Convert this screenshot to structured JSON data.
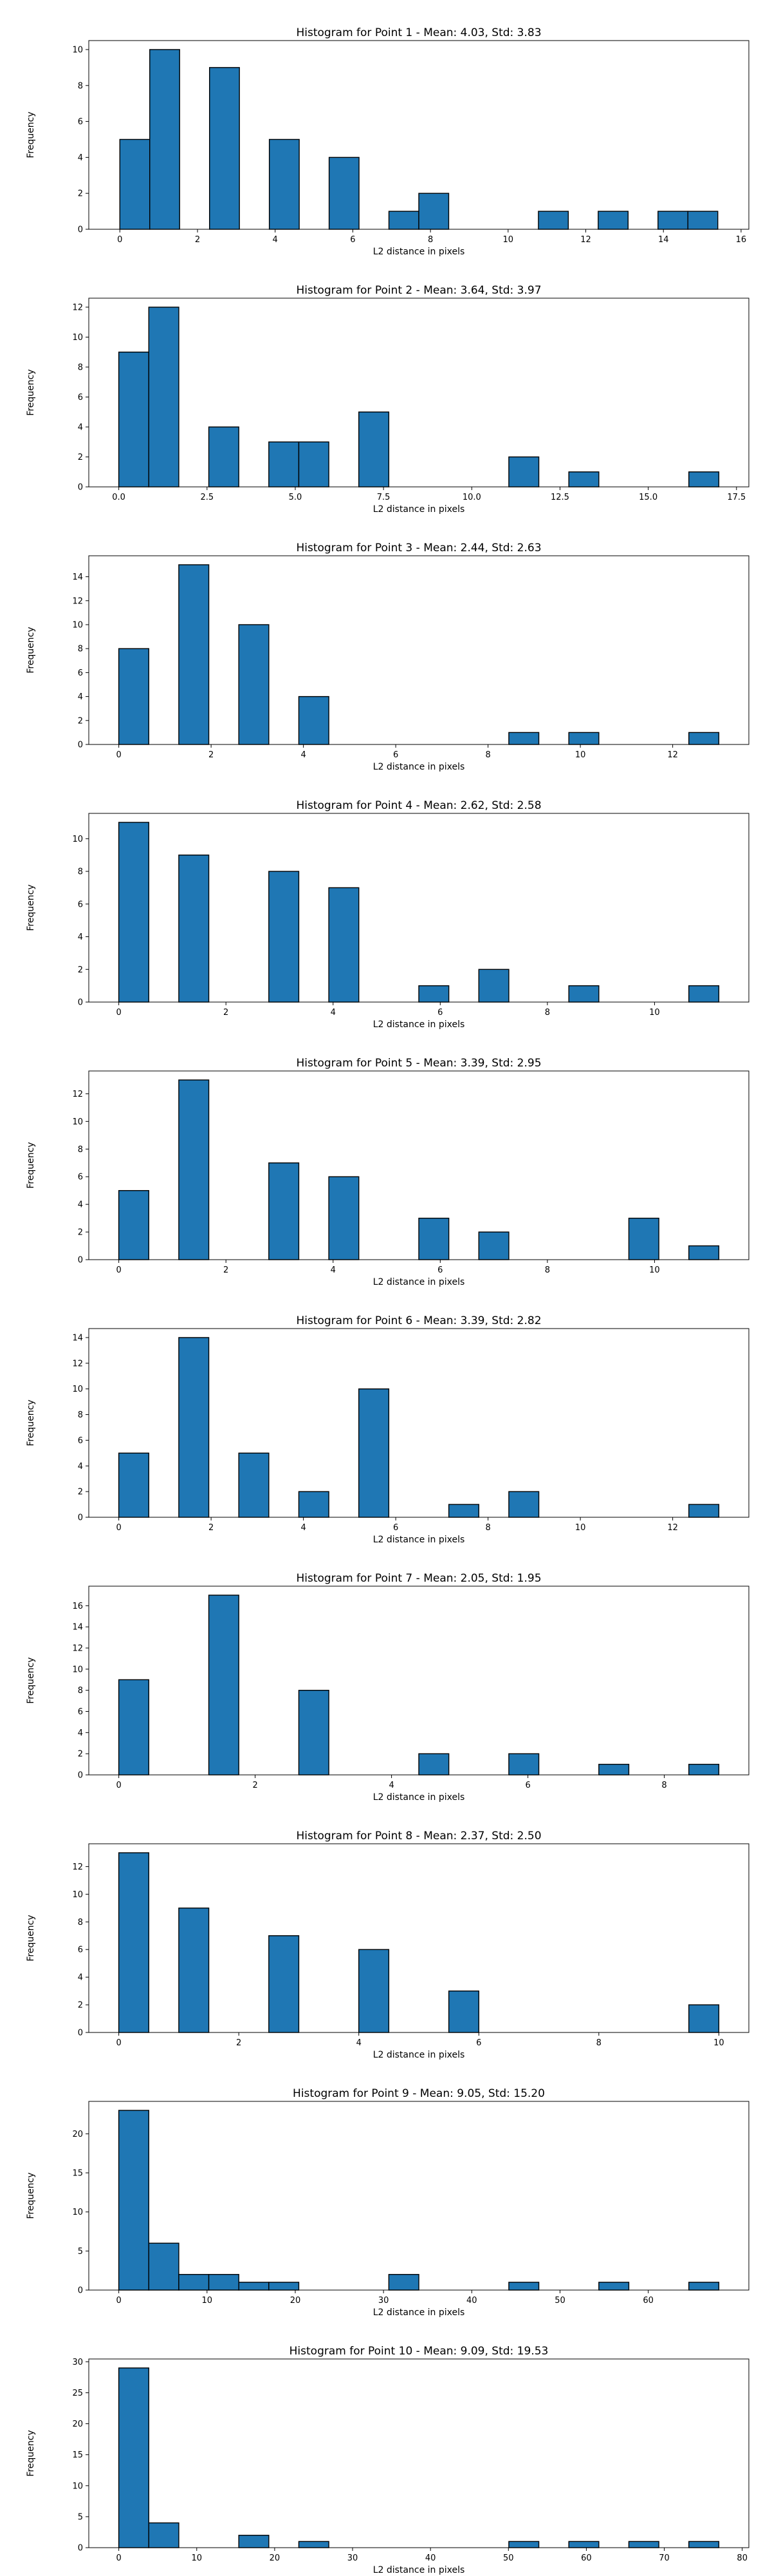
{
  "style": {
    "bar_color": "#1f77b4",
    "edge_color": "#000000"
  },
  "chart_data": [
    {
      "type": "bar",
      "title": "Histogram for Point 1 - Mean: 4.03, Std: 3.83",
      "xlabel": "L2 distance in pixels",
      "ylabel": "Frequency",
      "xlim": [
        -0.8,
        16.2
      ],
      "ylim": [
        0,
        10.5
      ],
      "xticks": [
        0,
        2,
        4,
        6,
        8,
        10,
        12,
        14,
        16
      ],
      "xtick_labels": [
        "0",
        "2",
        "4",
        "6",
        "8",
        "10",
        "12",
        "14",
        "16"
      ],
      "yticks": [
        0,
        2,
        4,
        6,
        8,
        10
      ],
      "ytick_labels": [
        "0",
        "2",
        "4",
        "6",
        "8",
        "10"
      ],
      "bin_edges": [
        0,
        0.77,
        1.54,
        2.31,
        3.08,
        3.85,
        4.62,
        5.39,
        6.16,
        6.93,
        7.7,
        8.47,
        9.24,
        10.01,
        10.78,
        11.55,
        12.32,
        13.09,
        13.86,
        14.63,
        15.4
      ],
      "counts": [
        5,
        10,
        0,
        9,
        0,
        5,
        0,
        4,
        0,
        1,
        2,
        0,
        0,
        0,
        1,
        0,
        1,
        0,
        1,
        1
      ]
    },
    {
      "type": "bar",
      "title": "Histogram for Point 2 - Mean: 3.64, Std: 3.97",
      "xlabel": "L2 distance in pixels",
      "ylabel": "Frequency",
      "xlim": [
        -0.85,
        17.85
      ],
      "ylim": [
        0,
        12.6
      ],
      "xticks": [
        0,
        2.5,
        5,
        7.5,
        10,
        12.5,
        15,
        17.5
      ],
      "xtick_labels": [
        "0.0",
        "2.5",
        "5.0",
        "7.5",
        "10.0",
        "12.5",
        "15.0",
        "17.5"
      ],
      "yticks": [
        0,
        2,
        4,
        6,
        8,
        10,
        12
      ],
      "ytick_labels": [
        "0",
        "2",
        "4",
        "6",
        "8",
        "10",
        "12"
      ],
      "bin_edges": [
        0,
        0.85,
        1.7,
        2.55,
        3.4,
        4.25,
        5.1,
        5.95,
        6.8,
        7.65,
        8.5,
        9.35,
        10.2,
        11.05,
        11.9,
        12.75,
        13.6,
        14.45,
        15.3,
        16.15,
        17.0
      ],
      "counts": [
        9,
        12,
        0,
        4,
        0,
        3,
        3,
        0,
        5,
        0,
        0,
        0,
        0,
        2,
        0,
        1,
        0,
        0,
        0,
        1
      ]
    },
    {
      "type": "bar",
      "title": "Histogram for Point 3 - Mean: 2.44, Std: 2.63",
      "xlabel": "L2 distance in pixels",
      "ylabel": "Frequency",
      "xlim": [
        -0.65,
        13.65
      ],
      "ylim": [
        0,
        15.75
      ],
      "xticks": [
        0,
        2,
        4,
        6,
        8,
        10,
        12
      ],
      "xtick_labels": [
        "0",
        "2",
        "4",
        "6",
        "8",
        "10",
        "12"
      ],
      "yticks": [
        0,
        2,
        4,
        6,
        8,
        10,
        12,
        14
      ],
      "ytick_labels": [
        "0",
        "2",
        "4",
        "6",
        "8",
        "10",
        "12",
        "14"
      ],
      "bin_edges": [
        0,
        0.65,
        1.3,
        1.95,
        2.6,
        3.25,
        3.9,
        4.55,
        5.2,
        5.85,
        6.5,
        7.15,
        7.8,
        8.45,
        9.1,
        9.75,
        10.4,
        11.05,
        11.7,
        12.35,
        13.0
      ],
      "counts": [
        8,
        0,
        15,
        0,
        10,
        0,
        4,
        0,
        0,
        0,
        0,
        0,
        0,
        1,
        0,
        1,
        0,
        0,
        0,
        1
      ]
    },
    {
      "type": "bar",
      "title": "Histogram for Point 4 - Mean: 2.62, Std: 2.58",
      "xlabel": "L2 distance in pixels",
      "ylabel": "Frequency",
      "xlim": [
        -0.56,
        11.76
      ],
      "ylim": [
        0,
        11.55
      ],
      "xticks": [
        0,
        2,
        4,
        6,
        8,
        10
      ],
      "xtick_labels": [
        "0",
        "2",
        "4",
        "6",
        "8",
        "10"
      ],
      "yticks": [
        0,
        2,
        4,
        6,
        8,
        10
      ],
      "ytick_labels": [
        "0",
        "2",
        "4",
        "6",
        "8",
        "10"
      ],
      "bin_edges": [
        0,
        0.56,
        1.12,
        1.68,
        2.24,
        2.8,
        3.36,
        3.92,
        4.48,
        5.04,
        5.6,
        6.16,
        6.72,
        7.28,
        7.84,
        8.4,
        8.96,
        9.52,
        10.08,
        10.64,
        11.2
      ],
      "counts": [
        11,
        0,
        9,
        0,
        0,
        8,
        0,
        7,
        0,
        0,
        1,
        0,
        2,
        0,
        0,
        1,
        0,
        0,
        0,
        1
      ]
    },
    {
      "type": "bar",
      "title": "Histogram for Point 5 - Mean: 3.39, Std: 2.95",
      "xlabel": "L2 distance in pixels",
      "ylabel": "Frequency",
      "xlim": [
        -0.56,
        11.76
      ],
      "ylim": [
        0,
        13.65
      ],
      "xticks": [
        0,
        2,
        4,
        6,
        8,
        10
      ],
      "xtick_labels": [
        "0",
        "2",
        "4",
        "6",
        "8",
        "10"
      ],
      "yticks": [
        0,
        2,
        4,
        6,
        8,
        10,
        12
      ],
      "ytick_labels": [
        "0",
        "2",
        "4",
        "6",
        "8",
        "10",
        "12"
      ],
      "bin_edges": [
        0,
        0.56,
        1.12,
        1.68,
        2.24,
        2.8,
        3.36,
        3.92,
        4.48,
        5.04,
        5.6,
        6.16,
        6.72,
        7.28,
        7.84,
        8.4,
        8.96,
        9.52,
        10.08,
        10.64,
        11.2
      ],
      "counts": [
        5,
        0,
        13,
        0,
        0,
        7,
        0,
        6,
        0,
        0,
        3,
        0,
        2,
        0,
        0,
        0,
        0,
        3,
        0,
        1
      ]
    },
    {
      "type": "bar",
      "title": "Histogram for Point 6 - Mean: 3.39, Std: 2.82",
      "xlabel": "L2 distance in pixels",
      "ylabel": "Frequency",
      "xlim": [
        -0.65,
        13.65
      ],
      "ylim": [
        0,
        14.7
      ],
      "xticks": [
        0,
        2,
        4,
        6,
        8,
        10,
        12
      ],
      "xtick_labels": [
        "0",
        "2",
        "4",
        "6",
        "8",
        "10",
        "12"
      ],
      "yticks": [
        0,
        2,
        4,
        6,
        8,
        10,
        12,
        14
      ],
      "ytick_labels": [
        "0",
        "2",
        "4",
        "6",
        "8",
        "10",
        "12",
        "14"
      ],
      "bin_edges": [
        0,
        0.65,
        1.3,
        1.95,
        2.6,
        3.25,
        3.9,
        4.55,
        5.2,
        5.85,
        6.5,
        7.15,
        7.8,
        8.45,
        9.1,
        9.75,
        10.4,
        11.05,
        11.7,
        12.35,
        13.0
      ],
      "counts": [
        5,
        0,
        14,
        0,
        5,
        0,
        2,
        0,
        10,
        0,
        0,
        1,
        0,
        2,
        0,
        0,
        0,
        0,
        0,
        1
      ]
    },
    {
      "type": "bar",
      "title": "Histogram for Point 7 - Mean: 2.05, Std: 1.95",
      "xlabel": "L2 distance in pixels",
      "ylabel": "Frequency",
      "xlim": [
        -0.44,
        9.24
      ],
      "ylim": [
        0,
        17.85
      ],
      "xticks": [
        0,
        2,
        4,
        6,
        8
      ],
      "xtick_labels": [
        "0",
        "2",
        "4",
        "6",
        "8"
      ],
      "yticks": [
        0,
        2,
        4,
        6,
        8,
        10,
        12,
        14,
        16
      ],
      "ytick_labels": [
        "0",
        "2",
        "4",
        "6",
        "8",
        "10",
        "12",
        "14",
        "16"
      ],
      "bin_edges": [
        0,
        0.44,
        0.88,
        1.32,
        1.76,
        2.2,
        2.64,
        3.08,
        3.52,
        3.96,
        4.4,
        4.84,
        5.28,
        5.72,
        6.16,
        6.6,
        7.04,
        7.48,
        7.92,
        8.36,
        8.8
      ],
      "counts": [
        9,
        0,
        0,
        17,
        0,
        0,
        8,
        0,
        0,
        0,
        2,
        0,
        0,
        2,
        0,
        0,
        1,
        0,
        0,
        1
      ]
    },
    {
      "type": "bar",
      "title": "Histogram for Point 8 - Mean: 2.37, Std: 2.50",
      "xlabel": "L2 distance in pixels",
      "ylabel": "Frequency",
      "xlim": [
        -0.5,
        10.5
      ],
      "ylim": [
        0,
        13.65
      ],
      "xticks": [
        0,
        2,
        4,
        6,
        8,
        10
      ],
      "xtick_labels": [
        "0",
        "2",
        "4",
        "6",
        "8",
        "10"
      ],
      "yticks": [
        0,
        2,
        4,
        6,
        8,
        10,
        12
      ],
      "ytick_labels": [
        "0",
        "2",
        "4",
        "6",
        "8",
        "10",
        "12"
      ],
      "bin_edges": [
        0,
        0.5,
        1.0,
        1.5,
        2.0,
        2.5,
        3.0,
        3.5,
        4.0,
        4.5,
        5.0,
        5.5,
        6.0,
        6.5,
        7.0,
        7.5,
        8.0,
        8.5,
        9.0,
        9.5,
        10.0
      ],
      "counts": [
        13,
        0,
        9,
        0,
        0,
        7,
        0,
        0,
        6,
        0,
        0,
        3,
        0,
        0,
        0,
        0,
        0,
        0,
        0,
        2
      ]
    },
    {
      "type": "bar",
      "title": "Histogram for Point 9 - Mean: 9.05, Std: 15.20",
      "xlabel": "L2 distance in pixels",
      "ylabel": "Frequency",
      "xlim": [
        -3.4,
        71.4
      ],
      "ylim": [
        0,
        24.15
      ],
      "xticks": [
        0,
        10,
        20,
        30,
        40,
        50,
        60
      ],
      "xtick_labels": [
        "0",
        "10",
        "20",
        "30",
        "40",
        "50",
        "60"
      ],
      "yticks": [
        0,
        5,
        10,
        15,
        20
      ],
      "ytick_labels": [
        "0",
        "5",
        "10",
        "15",
        "20"
      ],
      "bin_edges": [
        0,
        3.4,
        6.8,
        10.2,
        13.6,
        17.0,
        20.4,
        23.8,
        27.2,
        30.6,
        34.0,
        37.4,
        40.8,
        44.2,
        47.6,
        51.0,
        54.4,
        57.8,
        61.2,
        64.6,
        68.0
      ],
      "counts": [
        23,
        6,
        2,
        2,
        1,
        1,
        0,
        0,
        0,
        2,
        0,
        0,
        0,
        1,
        0,
        0,
        1,
        0,
        0,
        1
      ]
    },
    {
      "type": "bar",
      "title": "Histogram for Point 10 - Mean: 9.09, Std: 19.53",
      "xlabel": "L2 distance in pixels",
      "ylabel": "Frequency",
      "xlim": [
        -3.85,
        80.85
      ],
      "ylim": [
        0,
        30.45
      ],
      "xticks": [
        0,
        10,
        20,
        30,
        40,
        50,
        60,
        70,
        80
      ],
      "xtick_labels": [
        "0",
        "10",
        "20",
        "30",
        "40",
        "50",
        "60",
        "70",
        "80"
      ],
      "yticks": [
        0,
        5,
        10,
        15,
        20,
        25,
        30
      ],
      "ytick_labels": [
        "0",
        "5",
        "10",
        "15",
        "20",
        "25",
        "30"
      ],
      "bin_edges": [
        0,
        3.85,
        7.7,
        11.55,
        15.4,
        19.25,
        23.1,
        26.95,
        30.8,
        34.65,
        38.5,
        42.35,
        46.2,
        50.05,
        53.9,
        57.75,
        61.6,
        65.45,
        69.3,
        73.15,
        77.0
      ],
      "counts": [
        29,
        4,
        0,
        0,
        2,
        0,
        1,
        0,
        0,
        0,
        0,
        0,
        0,
        1,
        0,
        1,
        0,
        1,
        0,
        1
      ]
    }
  ]
}
